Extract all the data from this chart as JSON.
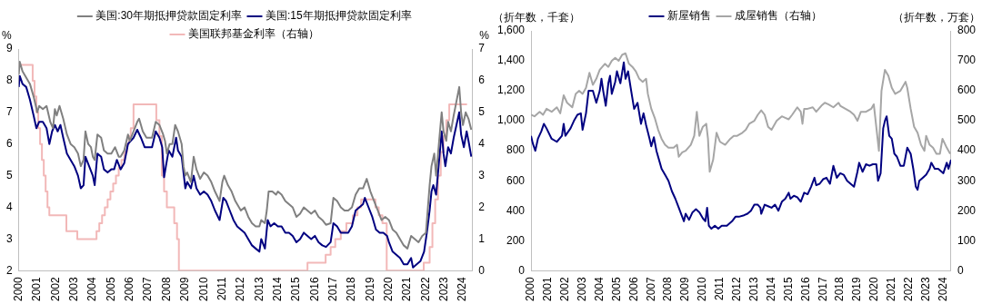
{
  "chart_data": [
    {
      "type": "line",
      "ylabel": "%",
      "y2label": "%",
      "legend": "top",
      "xlim": [
        2000,
        2024.5
      ],
      "xticks": [
        2000,
        2001,
        2002,
        2003,
        2004,
        2005,
        2006,
        2007,
        2008,
        2009,
        2010,
        2011,
        2012,
        2013,
        2014,
        2015,
        2016,
        2017,
        2018,
        2019,
        2020,
        2021,
        2022,
        2023,
        2024
      ],
      "ylim": [
        2,
        9
      ],
      "yticks": [
        2,
        3,
        4,
        5,
        6,
        7,
        8,
        9
      ],
      "y2lim": [
        0,
        7
      ],
      "y2ticks": [
        0,
        1,
        2,
        3,
        4,
        5,
        6,
        7
      ],
      "series": [
        {
          "name": "美国:30年期抵押贷款固定利率",
          "color": "#808080",
          "x": [
            2000,
            2000.05,
            2000.2,
            2000.4,
            2000.6,
            2000.8,
            2001.0,
            2001.1,
            2001.3,
            2001.5,
            2001.7,
            2001.85,
            2001.95,
            2002.05,
            2002.2,
            2002.4,
            2002.6,
            2002.8,
            2003.0,
            2003.2,
            2003.35,
            2003.5,
            2003.6,
            2003.75,
            2003.9,
            2004.0,
            2004.1,
            2004.25,
            2004.45,
            2004.6,
            2004.8,
            2005.0,
            2005.2,
            2005.4,
            2005.5,
            2005.7,
            2005.9,
            2006.0,
            2006.2,
            2006.4,
            2006.5,
            2006.7,
            2006.9,
            2007.0,
            2007.2,
            2007.4,
            2007.6,
            2007.8,
            2007.9,
            2008.0,
            2008.15,
            2008.3,
            2008.45,
            2008.6,
            2008.8,
            2008.9,
            2009.0,
            2009.1,
            2009.3,
            2009.45,
            2009.6,
            2009.8,
            2010.0,
            2010.2,
            2010.4,
            2010.6,
            2010.85,
            2011.0,
            2011.1,
            2011.3,
            2011.5,
            2011.7,
            2011.9,
            2012.0,
            2012.2,
            2012.4,
            2012.6,
            2012.8,
            2013.0,
            2013.1,
            2013.3,
            2013.4,
            2013.5,
            2013.7,
            2013.9,
            2014.0,
            2014.2,
            2014.4,
            2014.6,
            2014.8,
            2015.0,
            2015.2,
            2015.4,
            2015.6,
            2015.8,
            2016.0,
            2016.2,
            2016.4,
            2016.6,
            2016.85,
            2017.0,
            2017.2,
            2017.4,
            2017.6,
            2017.8,
            2018.0,
            2018.2,
            2018.4,
            2018.6,
            2018.8,
            2019.0,
            2019.2,
            2019.4,
            2019.6,
            2019.8,
            2020.0,
            2020.2,
            2020.4,
            2020.6,
            2020.8,
            2021.0,
            2021.2,
            2021.4,
            2021.6,
            2021.8,
            2022.0,
            2022.2,
            2022.3,
            2022.45,
            2022.55,
            2022.7,
            2022.85,
            2022.95,
            2023.1,
            2023.2,
            2023.35,
            2023.5,
            2023.6,
            2023.8,
            2023.9,
            2024.0,
            2024.15,
            2024.3,
            2024.45
          ],
          "values": [
            8.2,
            8.6,
            8.3,
            8.1,
            7.9,
            7.5,
            7.0,
            7.2,
            7.1,
            7.2,
            6.7,
            6.5,
            7.1,
            6.9,
            7.2,
            6.8,
            6.3,
            6.0,
            5.9,
            5.7,
            5.3,
            5.5,
            6.4,
            6.0,
            5.9,
            5.6,
            5.5,
            6.3,
            6.2,
            5.8,
            5.7,
            5.7,
            5.9,
            5.6,
            5.6,
            5.8,
            6.3,
            6.1,
            6.4,
            6.7,
            6.8,
            6.4,
            6.2,
            6.2,
            6.2,
            6.7,
            6.6,
            6.3,
            6.1,
            5.7,
            6.0,
            6.0,
            6.6,
            6.4,
            6.0,
            5.3,
            5.0,
            5.1,
            4.8,
            5.6,
            5.2,
            4.9,
            5.1,
            5.0,
            4.8,
            4.5,
            4.2,
            4.8,
            5.0,
            4.7,
            4.5,
            4.2,
            4.0,
            3.9,
            4.0,
            3.7,
            3.5,
            3.4,
            3.4,
            3.6,
            3.5,
            3.9,
            4.5,
            4.5,
            4.4,
            4.5,
            4.4,
            4.2,
            4.1,
            4.0,
            3.7,
            3.8,
            4.0,
            3.9,
            3.8,
            3.9,
            3.7,
            3.6,
            3.45,
            3.5,
            4.3,
            4.2,
            4.0,
            3.9,
            3.9,
            4.0,
            4.4,
            4.6,
            4.6,
            4.9,
            4.5,
            4.2,
            3.9,
            3.6,
            3.7,
            3.6,
            3.3,
            3.2,
            3.0,
            2.8,
            2.7,
            3.1,
            3.0,
            2.9,
            3.1,
            3.2,
            4.7,
            5.3,
            5.7,
            5.0,
            6.0,
            7.0,
            6.4,
            6.1,
            6.7,
            6.4,
            6.9,
            7.2,
            7.8,
            7.0,
            6.6,
            7.0,
            6.8,
            6.45
          ]
        },
        {
          "name": "美国:15年期抵押贷款固定利率",
          "color": "#000080",
          "x": [
            2000,
            2000.05,
            2000.2,
            2000.4,
            2000.6,
            2000.8,
            2000.95,
            2001.1,
            2001.3,
            2001.5,
            2001.65,
            2001.8,
            2001.95,
            2002.1,
            2002.25,
            2002.4,
            2002.6,
            2002.8,
            2003.0,
            2003.2,
            2003.35,
            2003.5,
            2003.6,
            2003.8,
            2004.0,
            2004.1,
            2004.25,
            2004.45,
            2004.6,
            2004.8,
            2005.0,
            2005.15,
            2005.3,
            2005.5,
            2005.7,
            2005.9,
            2006.2,
            2006.4,
            2006.6,
            2006.8,
            2007.0,
            2007.2,
            2007.4,
            2007.6,
            2007.75,
            2007.85,
            2007.95,
            2008.1,
            2008.3,
            2008.5,
            2008.6,
            2008.8,
            2009.0,
            2009.1,
            2009.3,
            2009.45,
            2009.6,
            2009.8,
            2010.0,
            2010.2,
            2010.4,
            2010.6,
            2010.85,
            2011.05,
            2011.2,
            2011.4,
            2011.6,
            2011.8,
            2012.0,
            2012.2,
            2012.4,
            2012.6,
            2012.8,
            2013.0,
            2013.1,
            2013.3,
            2013.45,
            2013.6,
            2013.8,
            2014.0,
            2014.2,
            2014.4,
            2014.6,
            2014.8,
            2015.0,
            2015.2,
            2015.4,
            2015.6,
            2015.8,
            2016.0,
            2016.2,
            2016.4,
            2016.6,
            2016.85,
            2017.0,
            2017.2,
            2017.4,
            2017.6,
            2017.8,
            2018.0,
            2018.2,
            2018.4,
            2018.6,
            2018.7,
            2018.9,
            2019.1,
            2019.3,
            2019.5,
            2019.7,
            2019.9,
            2020.0,
            2020.2,
            2020.4,
            2020.6,
            2020.8,
            2021.0,
            2021.2,
            2021.3,
            2021.5,
            2021.7,
            2021.9,
            2022.05,
            2022.2,
            2022.3,
            2022.4,
            2022.55,
            2022.7,
            2022.85,
            2022.95,
            2023.05,
            2023.2,
            2023.35,
            2023.5,
            2023.65,
            2023.8,
            2023.9,
            2024.05,
            2024.2,
            2024.3,
            2024.45
          ],
          "values": [
            7.8,
            8.15,
            7.9,
            7.8,
            7.4,
            6.9,
            6.5,
            6.7,
            6.7,
            6.5,
            6.0,
            6.4,
            6.6,
            6.4,
            6.6,
            6.2,
            5.7,
            5.5,
            5.3,
            5.0,
            4.6,
            4.7,
            5.6,
            5.3,
            5.0,
            4.7,
            5.7,
            5.6,
            5.2,
            5.1,
            5.2,
            5.2,
            5.5,
            5.2,
            5.4,
            6.0,
            6.2,
            6.45,
            6.2,
            5.9,
            5.9,
            5.9,
            6.4,
            6.2,
            5.9,
            4.95,
            5.3,
            5.8,
            5.6,
            6.2,
            5.8,
            5.6,
            4.6,
            4.8,
            4.6,
            5.0,
            4.6,
            4.4,
            4.5,
            4.4,
            4.2,
            3.9,
            3.6,
            4.3,
            4.2,
            3.9,
            3.6,
            3.4,
            3.3,
            3.2,
            3.0,
            2.8,
            2.7,
            2.6,
            3.0,
            2.7,
            3.6,
            3.4,
            3.5,
            3.4,
            3.4,
            3.2,
            3.2,
            3.1,
            2.9,
            3.0,
            3.2,
            3.1,
            3.0,
            3.1,
            2.9,
            2.8,
            2.75,
            2.9,
            3.5,
            3.4,
            3.2,
            3.2,
            3.2,
            3.4,
            3.9,
            4.0,
            4.1,
            4.3,
            4.0,
            3.7,
            3.3,
            3.2,
            3.2,
            3.1,
            2.9,
            2.6,
            2.5,
            2.4,
            2.2,
            2.2,
            2.4,
            2.1,
            2.2,
            2.3,
            2.6,
            3.2,
            3.9,
            4.5,
            4.7,
            4.4,
            5.4,
            6.4,
            5.7,
            5.3,
            5.9,
            5.7,
            6.2,
            6.6,
            7.0,
            6.3,
            5.9,
            6.4,
            6.1,
            5.6
          ]
        },
        {
          "name": "美国联邦基金利率（右轴）",
          "color": "#f2b8b8",
          "type": "step",
          "axis": "y2",
          "x": [
            2000,
            2000.75,
            2000.85,
            2000.95,
            2001.05,
            2001.15,
            2001.25,
            2001.35,
            2001.45,
            2001.55,
            2001.65,
            2002.57,
            2003.16,
            2004.2,
            2004.35,
            2004.5,
            2004.65,
            2004.8,
            2004.95,
            2005.1,
            2005.25,
            2005.4,
            2005.55,
            2005.7,
            2005.85,
            2005.95,
            2006.05,
            2006.2,
            2007.43,
            2007.6,
            2007.73,
            2007.85,
            2008.0,
            2008.4,
            2008.55,
            2008.65,
            2015.6,
            2016.58,
            2016.85,
            2017.1,
            2017.4,
            2017.7,
            2018.05,
            2018.3,
            2018.5,
            2019.27,
            2019.45,
            2019.65,
            2019.88,
            2021.88,
            2022.2,
            2022.35,
            2022.5,
            2022.65,
            2022.8,
            2022.95,
            2023.1,
            2023.26,
            2024.22
          ],
          "values": [
            6.5,
            6.0,
            5.5,
            5.0,
            4.5,
            4.0,
            3.5,
            3.0,
            2.5,
            2.0,
            1.75,
            1.25,
            1.0,
            1.25,
            1.5,
            1.75,
            2.0,
            2.25,
            2.5,
            2.75,
            3.0,
            3.25,
            3.5,
            3.75,
            4.0,
            4.25,
            4.5,
            5.25,
            4.75,
            4.25,
            3.0,
            2.5,
            2.0,
            1.5,
            1.0,
            0,
            0.25,
            0.5,
            0.75,
            1.0,
            1.25,
            1.5,
            1.75,
            2.0,
            2.25,
            2.0,
            1.75,
            1.5,
            0,
            0.25,
            0.75,
            1.5,
            2.25,
            3.0,
            3.75,
            4.25,
            4.75,
            5.25,
            5.25
          ]
        }
      ]
    },
    {
      "type": "line",
      "ylabel": "（折年数，千套）",
      "y2label": "（折年数，万套）",
      "legend": "top",
      "xlim": [
        2000,
        2024.45
      ],
      "xticks": [
        2000,
        2001,
        2002,
        2003,
        2004,
        2005,
        2006,
        2007,
        2008,
        2009,
        2010,
        2011,
        2012,
        2013,
        2014,
        2015,
        2016,
        2017,
        2018,
        2019,
        2020,
        2021,
        2022,
        2023,
        2024
      ],
      "ylim": [
        0,
        1600
      ],
      "yticks": [
        0,
        200,
        400,
        600,
        800,
        {
          "value": 1000,
          "label": "1,000"
        },
        {
          "value": 1200,
          "label": "1,200"
        },
        {
          "value": 1400,
          "label": "1,400"
        },
        {
          "value": 1600,
          "label": "1,600"
        }
      ],
      "y2lim": [
        0,
        800
      ],
      "y2ticks": [
        0,
        100,
        200,
        300,
        400,
        500,
        600,
        700,
        800
      ],
      "series": [
        {
          "name": "新屋销售",
          "color": "#000080",
          "x": [
            2000,
            2000.1,
            2000.25,
            2000.4,
            2000.6,
            2000.75,
            2000.9,
            2001.2,
            2001.5,
            2001.8,
            2001.9,
            2002.0,
            2002.3,
            2002.5,
            2002.7,
            2002.9,
            2003.0,
            2003.2,
            2003.35,
            2003.6,
            2003.8,
            2004.0,
            2004.1,
            2004.2,
            2004.35,
            2004.5,
            2004.6,
            2004.7,
            2004.9,
            2005.0,
            2005.2,
            2005.4,
            2005.5,
            2005.65,
            2005.8,
            2006.0,
            2006.2,
            2006.4,
            2006.55,
            2006.7,
            2006.9,
            2007.0,
            2007.15,
            2007.3,
            2007.5,
            2007.6,
            2007.8,
            2008.0,
            2008.2,
            2008.4,
            2008.6,
            2008.8,
            2008.9,
            2009.0,
            2009.2,
            2009.4,
            2009.6,
            2009.8,
            2010.0,
            2010.15,
            2010.25,
            2010.35,
            2010.5,
            2010.7,
            2010.9,
            2011.1,
            2011.4,
            2011.7,
            2011.9,
            2012.1,
            2012.4,
            2012.6,
            2012.8,
            2013.0,
            2013.2,
            2013.35,
            2013.4,
            2013.6,
            2013.8,
            2014.0,
            2014.2,
            2014.4,
            2014.6,
            2014.8,
            2015.0,
            2015.1,
            2015.3,
            2015.5,
            2015.7,
            2015.9,
            2016.1,
            2016.3,
            2016.5,
            2016.6,
            2016.8,
            2017.0,
            2017.2,
            2017.4,
            2017.6,
            2017.8,
            2018.0,
            2018.2,
            2018.4,
            2018.6,
            2018.8,
            2019.0,
            2019.1,
            2019.3,
            2019.5,
            2019.7,
            2019.9,
            2020.1,
            2020.2,
            2020.35,
            2020.5,
            2020.6,
            2020.7,
            2020.85,
            2021.0,
            2021.15,
            2021.3,
            2021.5,
            2021.7,
            2021.9,
            2022.1,
            2022.25,
            2022.4,
            2022.5,
            2022.6,
            2022.8,
            2023.0,
            2023.2,
            2023.3,
            2023.5,
            2023.7,
            2023.9,
            2024.0,
            2024.2,
            2024.3,
            2024.45
          ],
          "values": [
            900,
            850,
            800,
            880,
            930,
            980,
            950,
            880,
            860,
            900,
            980,
            900,
            950,
            1000,
            1040,
            1050,
            940,
            1050,
            1200,
            1200,
            1120,
            1200,
            1280,
            1200,
            1100,
            1250,
            1300,
            1180,
            1260,
            1330,
            1250,
            1390,
            1280,
            1330,
            1220,
            1080,
            1120,
            980,
            1050,
            970,
            880,
            830,
            890,
            800,
            720,
            680,
            640,
            600,
            530,
            480,
            420,
            360,
            330,
            380,
            340,
            390,
            410,
            390,
            350,
            330,
            420,
            300,
            280,
            300,
            280,
            300,
            300,
            330,
            360,
            360,
            370,
            380,
            400,
            440,
            440,
            420,
            380,
            440,
            430,
            420,
            440,
            400,
            460,
            480,
            520,
            480,
            500,
            490,
            460,
            520,
            510,
            560,
            620,
            570,
            580,
            610,
            620,
            580,
            700,
            620,
            650,
            640,
            600,
            580,
            560,
            660,
            720,
            660,
            710,
            700,
            710,
            710,
            600,
            650,
            950,
            1000,
            1030,
            900,
            880,
            780,
            760,
            700,
            700,
            820,
            780,
            680,
            560,
            540,
            600,
            620,
            640,
            680,
            720,
            680,
            680,
            660,
            650,
            720,
            680,
            740
          ]
        },
        {
          "name": "成屋销售（右轴）",
          "color": "#a6a6a6",
          "axis": "y2",
          "x": [
            2000,
            2000.2,
            2000.5,
            2000.7,
            2000.9,
            2001.2,
            2001.5,
            2001.7,
            2001.9,
            2002.1,
            2002.4,
            2002.6,
            2002.8,
            2003.0,
            2003.2,
            2003.4,
            2003.6,
            2003.8,
            2004.0,
            2004.3,
            2004.5,
            2004.7,
            2004.9,
            2005.1,
            2005.3,
            2005.5,
            2005.7,
            2005.9,
            2006.1,
            2006.3,
            2006.5,
            2006.7,
            2006.8,
            2007.0,
            2007.2,
            2007.4,
            2007.6,
            2007.8,
            2008.0,
            2008.3,
            2008.5,
            2008.6,
            2008.8,
            2009.0,
            2009.3,
            2009.5,
            2009.65,
            2009.8,
            2010.0,
            2010.2,
            2010.3,
            2010.4,
            2010.6,
            2010.8,
            2011.0,
            2011.3,
            2011.6,
            2011.8,
            2012.0,
            2012.3,
            2012.5,
            2012.7,
            2013.0,
            2013.2,
            2013.4,
            2013.6,
            2013.8,
            2014.0,
            2014.3,
            2014.6,
            2014.8,
            2015.0,
            2015.2,
            2015.5,
            2015.7,
            2015.8,
            2015.9,
            2016.1,
            2016.4,
            2016.6,
            2016.9,
            2017.1,
            2017.3,
            2017.6,
            2017.9,
            2018.0,
            2018.3,
            2018.6,
            2018.8,
            2019.0,
            2019.2,
            2019.5,
            2019.8,
            2019.95,
            2020.0,
            2020.25,
            2020.4,
            2020.6,
            2020.8,
            2021.0,
            2021.2,
            2021.5,
            2021.8,
            2021.9,
            2022.1,
            2022.3,
            2022.5,
            2022.7,
            2022.9,
            2023.0,
            2023.2,
            2023.4,
            2023.6,
            2023.8,
            2023.95,
            2024.2,
            2024.4
          ],
          "values": [
            520,
            515,
            530,
            520,
            540,
            530,
            545,
            525,
            585,
            560,
            545,
            590,
            600,
            590,
            610,
            660,
            620,
            640,
            670,
            690,
            680,
            700,
            710,
            700,
            720,
            725,
            690,
            680,
            665,
            640,
            630,
            640,
            590,
            540,
            510,
            470,
            440,
            420,
            410,
            410,
            420,
            380,
            395,
            400,
            420,
            450,
            530,
            450,
            480,
            490,
            440,
            330,
            370,
            460,
            430,
            420,
            440,
            450,
            450,
            460,
            470,
            490,
            500,
            520,
            535,
            520,
            480,
            470,
            500,
            515,
            510,
            505,
            520,
            545,
            530,
            490,
            540,
            540,
            545,
            530,
            550,
            560,
            555,
            545,
            560,
            550,
            540,
            530,
            520,
            500,
            530,
            530,
            540,
            555,
            530,
            400,
            600,
            670,
            650,
            610,
            590,
            600,
            630,
            610,
            540,
            480,
            460,
            420,
            400,
            450,
            420,
            410,
            390,
            390,
            440,
            410,
            390
          ]
        }
      ]
    }
  ]
}
